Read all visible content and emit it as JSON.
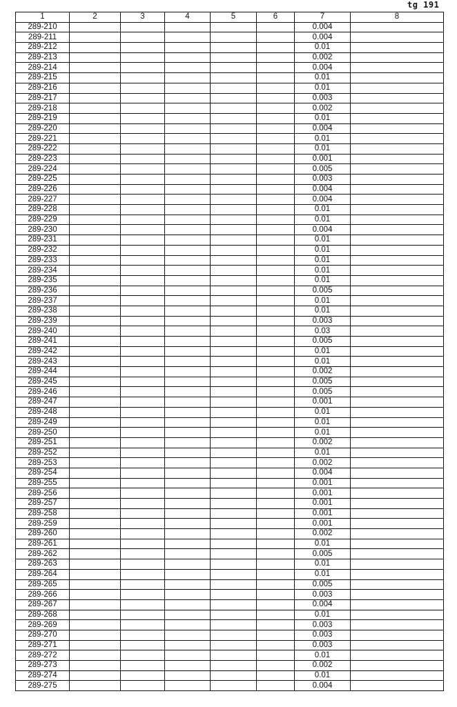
{
  "page_ref": "tg 191",
  "table": {
    "headers": [
      "1",
      "2",
      "3",
      "4",
      "5",
      "6",
      "7",
      "8"
    ],
    "rows": [
      [
        "289-210",
        "0.004"
      ],
      [
        "289-211",
        "0.004"
      ],
      [
        "289-212",
        "0.01"
      ],
      [
        "289-213",
        "0.002"
      ],
      [
        "289-214",
        "0.004"
      ],
      [
        "289-215",
        "0.01"
      ],
      [
        "289-216",
        "0.01"
      ],
      [
        "289-217",
        "0.003"
      ],
      [
        "289-218",
        "0.002"
      ],
      [
        "289-219",
        "0.01"
      ],
      [
        "289-220",
        "0.004"
      ],
      [
        "289-221",
        "0.01"
      ],
      [
        "289-222",
        "0.01"
      ],
      [
        "289-223",
        "0.001"
      ],
      [
        "289-224",
        "0.005"
      ],
      [
        "289-225",
        "0.003"
      ],
      [
        "289-226",
        "0.004"
      ],
      [
        "289-227",
        "0.004"
      ],
      [
        "289-228",
        "0.01"
      ],
      [
        "289-229",
        "0.01"
      ],
      [
        "289-230",
        "0.004"
      ],
      [
        "289-231",
        "0.01"
      ],
      [
        "289-232",
        "0.01"
      ],
      [
        "289-233",
        "0.01"
      ],
      [
        "289-234",
        "0.01"
      ],
      [
        "289-235",
        "0.01"
      ],
      [
        "289-236",
        "0.005"
      ],
      [
        "289-237",
        "0.01"
      ],
      [
        "289-238",
        "0.01"
      ],
      [
        "289-239",
        "0.003"
      ],
      [
        "289-240",
        "0.03"
      ],
      [
        "289-241",
        "0.005"
      ],
      [
        "289-242",
        "0.01"
      ],
      [
        "289-243",
        "0.01"
      ],
      [
        "289-244",
        "0.002"
      ],
      [
        "289-245",
        "0.005"
      ],
      [
        "289-246",
        "0.005"
      ],
      [
        "289-247",
        "0.001"
      ],
      [
        "289-248",
        "0.01"
      ],
      [
        "289-249",
        "0.01"
      ],
      [
        "289-250",
        "0.01"
      ],
      [
        "289-251",
        "0.002"
      ],
      [
        "289-252",
        "0.01"
      ],
      [
        "289-253",
        "0.002"
      ],
      [
        "289-254",
        "0.004"
      ],
      [
        "289-255",
        "0.001"
      ],
      [
        "289-256",
        "0.001"
      ],
      [
        "289-257",
        "0.001"
      ],
      [
        "289-258",
        "0.001"
      ],
      [
        "289-259",
        "0.001"
      ],
      [
        "289-260",
        "0.002"
      ],
      [
        "289-261",
        "0.01"
      ],
      [
        "289-262",
        "0.005"
      ],
      [
        "289-263",
        "0.01"
      ],
      [
        "289-264",
        "0.01"
      ],
      [
        "289-265",
        "0.005"
      ],
      [
        "289-266",
        "0.003"
      ],
      [
        "289-267",
        "0.004"
      ],
      [
        "289-268",
        "0.01"
      ],
      [
        "289-269",
        "0.003"
      ],
      [
        "289-270",
        "0.003"
      ],
      [
        "289-271",
        "0.003"
      ],
      [
        "289-272",
        "0.01"
      ],
      [
        "289-273",
        "0.002"
      ],
      [
        "289-274",
        "0.01"
      ],
      [
        "289-275",
        "0.004"
      ]
    ]
  }
}
